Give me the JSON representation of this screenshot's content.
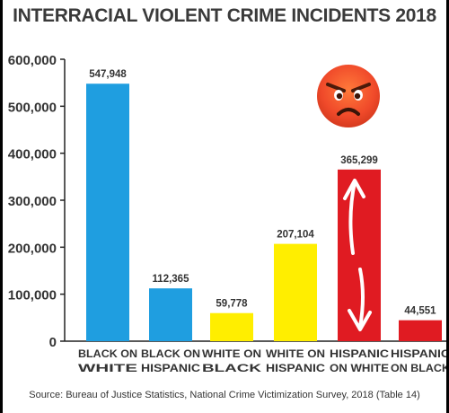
{
  "title": "INTERRACIAL VIOLENT CRIME INCIDENTS 2018",
  "source": "Source: Bureau of Justice Statistics, National Crime Victimization Survey, 2018 (Table 14)",
  "emoji": "angry-face-icon",
  "colors": {
    "blue": "#1f9ee0",
    "yellow": "#ffee00",
    "red": "#e01b22",
    "annotation": "#ffffff",
    "emoji_face": "#f04a2a"
  },
  "chart_data": {
    "type": "bar",
    "title": "INTERRACIAL VIOLENT CRIME INCIDENTS 2018",
    "categories": [
      [
        "BLACK ON",
        "WHITE"
      ],
      [
        "BLACK ON",
        "HISPANIC"
      ],
      [
        "WHITE ON",
        "BLACK"
      ],
      [
        "WHITE ON",
        "HISPANIC"
      ],
      [
        "HISPANIC",
        "ON WHITE"
      ],
      [
        "HISPANIC",
        "ON BLACK"
      ]
    ],
    "values": [
      547948,
      112365,
      59778,
      207104,
      365299,
      44551
    ],
    "value_labels": [
      "547,948",
      "112,365",
      "59,778",
      "207,104",
      "365,299",
      "44,551"
    ],
    "bar_colors": [
      "#1f9ee0",
      "#1f9ee0",
      "#ffee00",
      "#ffee00",
      "#e01b22",
      "#e01b22"
    ],
    "yticks": [
      0,
      100000,
      200000,
      300000,
      400000,
      500000,
      600000
    ],
    "ytick_labels": [
      "0",
      "100,000",
      "200,000",
      "300,000",
      "400,000",
      "500,000",
      "600,000"
    ],
    "ylim": [
      0,
      600000
    ],
    "grid": false,
    "legend": "none"
  }
}
